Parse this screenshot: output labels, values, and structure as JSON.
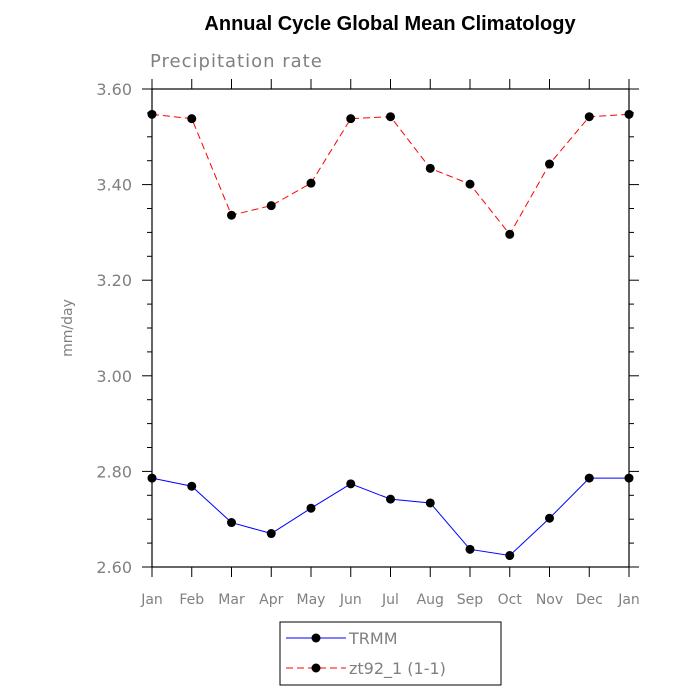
{
  "chart_data": {
    "type": "line",
    "title": "Annual Cycle Global Mean Climatology",
    "subtitle": "Precipitation rate",
    "xlabel": "",
    "ylabel": "mm/day",
    "categories": [
      "Jan",
      "Feb",
      "Mar",
      "Apr",
      "May",
      "Jun",
      "Jul",
      "Aug",
      "Sep",
      "Oct",
      "Nov",
      "Dec",
      "Jan"
    ],
    "ylim": [
      2.6,
      3.6
    ],
    "y_ticks": [
      2.6,
      2.8,
      3.0,
      3.2,
      3.4,
      3.6
    ],
    "y_tick_labels": [
      "2.60",
      "2.80",
      "3.00",
      "3.20",
      "3.40",
      "3.60"
    ],
    "legend_position": "bottom",
    "series": [
      {
        "name": "TRMM",
        "color": "#0000ff",
        "line_style": "solid",
        "marker": "filled-circle",
        "values": [
          2.786,
          2.769,
          2.693,
          2.67,
          2.723,
          2.774,
          2.742,
          2.734,
          2.637,
          2.624,
          2.702,
          2.786,
          2.786
        ]
      },
      {
        "name": "zt92_1 (1-1)",
        "color": "#ff0000",
        "line_style": "dashed",
        "marker": "filled-circle",
        "values": [
          3.547,
          3.538,
          3.336,
          3.356,
          3.403,
          3.538,
          3.542,
          3.434,
          3.401,
          3.296,
          3.443,
          3.542,
          3.547
        ]
      }
    ]
  }
}
